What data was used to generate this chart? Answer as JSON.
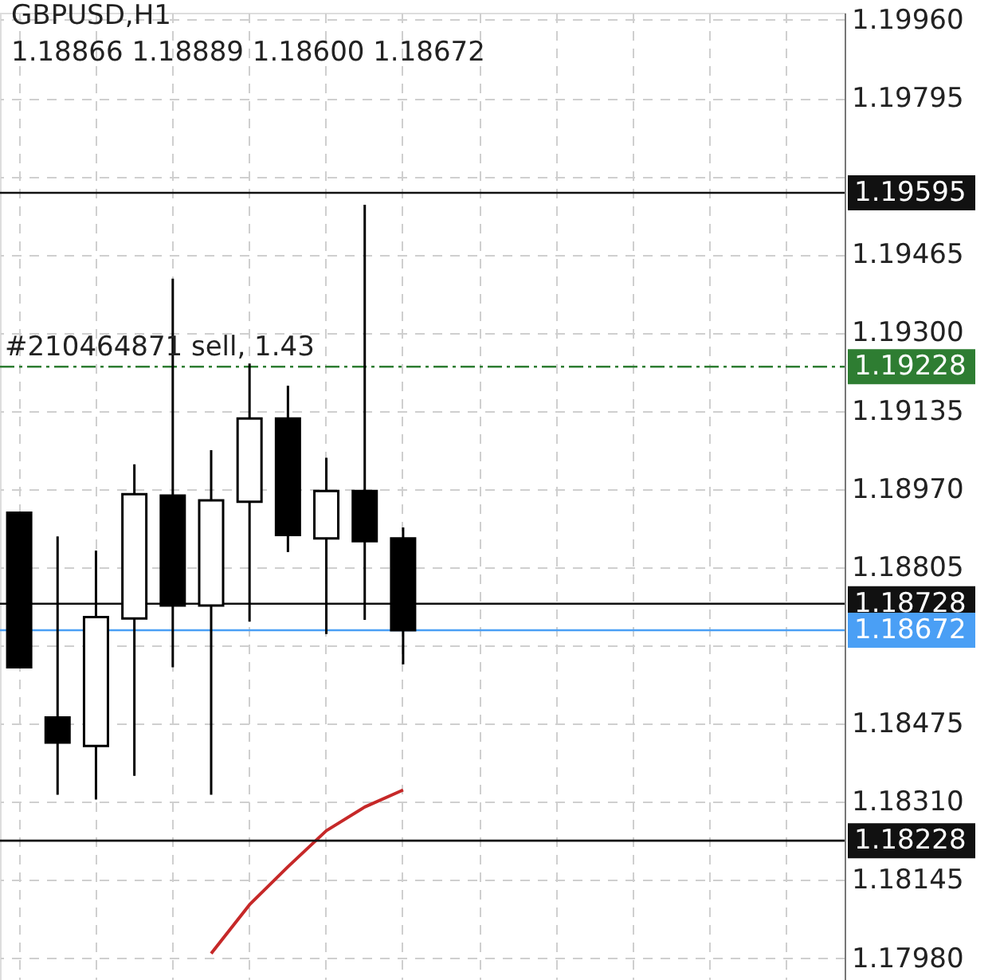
{
  "chart_data": {
    "type": "candlestick",
    "title": "GBPUSD,H1",
    "subtitle": "1.18866 1.18889 1.18600 1.18672",
    "categories": [
      null,
      null,
      null,
      null,
      null,
      null,
      null,
      null,
      null,
      null,
      null,
      null,
      null,
      null,
      null,
      null,
      null,
      null,
      null,
      null,
      null,
      null
    ],
    "ohlc": [
      [
        1.1892,
        1.1892,
        1.18594,
        1.18594
      ],
      [
        1.18488,
        1.1887,
        1.18325,
        1.18435
      ],
      [
        1.18428,
        1.1884,
        1.18315,
        1.187
      ],
      [
        1.18697,
        1.19022,
        1.18365,
        1.18959
      ],
      [
        1.18956,
        1.19414,
        1.18594,
        1.18724
      ],
      [
        1.18724,
        1.19052,
        1.18325,
        1.18946
      ],
      [
        1.18943,
        1.19235,
        1.1869,
        1.19119
      ],
      [
        1.19119,
        1.19188,
        1.18837,
        1.18873
      ],
      [
        1.18866,
        1.19036,
        1.18664,
        1.18966
      ],
      [
        1.18966,
        1.1957,
        1.18694,
        1.1886
      ],
      [
        1.18866,
        1.18889,
        1.186,
        1.18672
      ],
      null,
      null,
      null,
      null,
      null,
      null,
      null,
      null,
      null,
      null,
      null
    ],
    "series": [
      {
        "type": "line",
        "color": "#c62828",
        "values": [
          null,
          null,
          null,
          null,
          null,
          1.1799,
          1.18093,
          1.18173,
          1.18249,
          1.18299,
          1.18335,
          null,
          null,
          null,
          null,
          null,
          null,
          null,
          null,
          null,
          null,
          null
        ]
      }
    ],
    "ylim": [
      1.17934,
      1.19975
    ],
    "yticks": [
      {
        "value": 1.1798,
        "label": "1.17980"
      },
      {
        "value": 1.18145,
        "label": "1.18145"
      },
      {
        "value": 1.1831,
        "label": "1.18310"
      },
      {
        "value": 1.18475,
        "label": "1.18475"
      },
      {
        "value": 1.1864,
        "label": null
      },
      {
        "value": 1.18805,
        "label": "1.18805"
      },
      {
        "value": 1.1897,
        "label": "1.18970"
      },
      {
        "value": 1.19135,
        "label": "1.19135"
      },
      {
        "value": 1.193,
        "label": "1.19300"
      },
      {
        "value": 1.19465,
        "label": "1.19465"
      },
      {
        "value": 1.1963,
        "label": null
      },
      {
        "value": 1.19795,
        "label": "1.19795"
      },
      {
        "value": 1.1996,
        "label": "1.19960"
      }
    ],
    "grid": true,
    "ref_lines": [
      {
        "axis": "y",
        "value": 1.19595,
        "label": "1.19595",
        "color": "#111111",
        "line_style": "solid"
      },
      {
        "axis": "y",
        "value": 1.19228,
        "label": "1.19228",
        "color": "#2e7d32",
        "line_style": "dashed"
      },
      {
        "axis": "y",
        "value": 1.18728,
        "label": "1.18728",
        "color": "#111111",
        "line_style": "solid"
      },
      {
        "axis": "y",
        "value": 1.18672,
        "label": "1.18672",
        "color": "#4a9ff5",
        "line_style": "solid"
      },
      {
        "axis": "y",
        "value": 1.18228,
        "label": "1.18228",
        "color": "#111111",
        "line_style": "solid"
      }
    ],
    "annotations": [
      {
        "text": "#210464871 sell, 1.43",
        "y": 1.19228
      }
    ]
  }
}
